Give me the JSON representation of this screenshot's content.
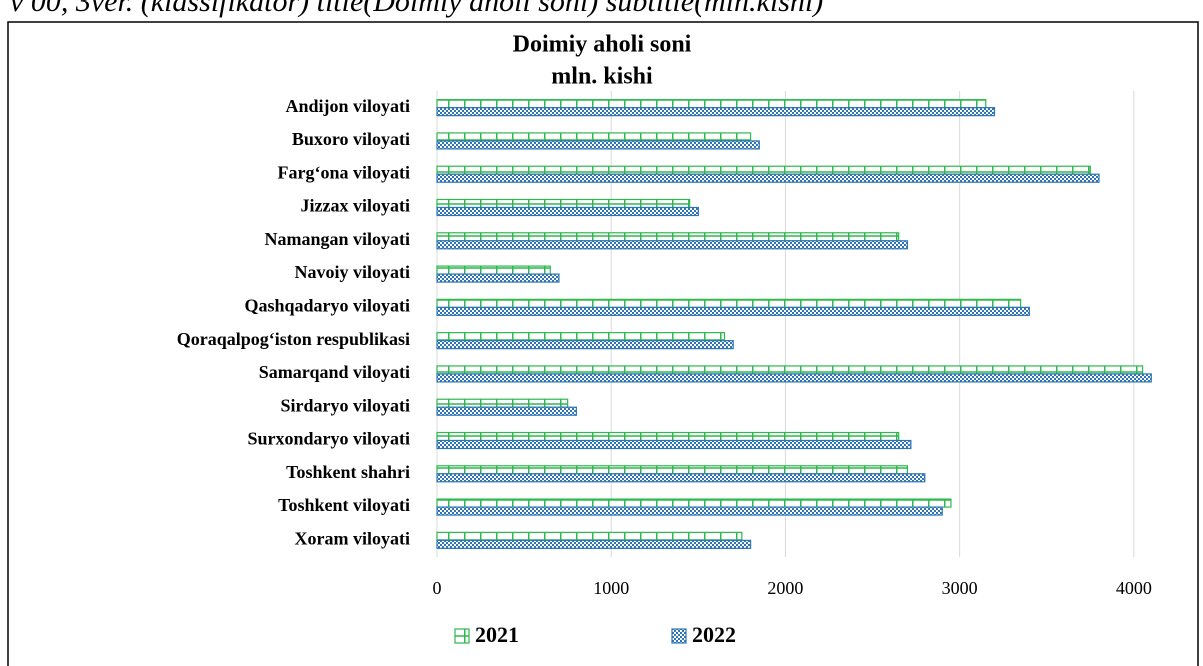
{
  "header_text": "v 00, 3ver. (klassifikator) title(Doimiy aholi soni) subtitle(mln.kishi)",
  "chart_data": {
    "type": "bar",
    "orientation": "horizontal",
    "title": "Doimiy aholi soni",
    "subtitle": "mln. kishi",
    "categories": [
      "Andijon viloyati",
      "Buxoro viloyati",
      "Farg‘ona viloyati",
      "Jizzax viloyati",
      "Namangan viloyati",
      "Navoiy viloyati",
      "Qashqadaryo viloyati",
      "Qoraqalpog‘iston respublikasi",
      "Samarqand viloyati",
      "Sirdaryo viloyati",
      "Surxondaryo viloyati",
      "Toshkent shahri",
      "Toshkent viloyati",
      "Xoram viloyati"
    ],
    "series": [
      {
        "name": "2021",
        "color": "#2eb84e",
        "values": [
          3150,
          1800,
          3750,
          1450,
          2650,
          650,
          3350,
          1650,
          4050,
          750,
          2650,
          2700,
          2950,
          1750
        ]
      },
      {
        "name": "2022",
        "color": "#2e75b6",
        "values": [
          3200,
          1850,
          3800,
          1500,
          2700,
          700,
          3400,
          1700,
          4100,
          800,
          2720,
          2800,
          2900,
          1800
        ]
      }
    ],
    "xlim": [
      0,
      4150
    ],
    "xticks": [
      0,
      1000,
      2000,
      3000,
      4000
    ],
    "grid": true,
    "legend": "bottom"
  }
}
